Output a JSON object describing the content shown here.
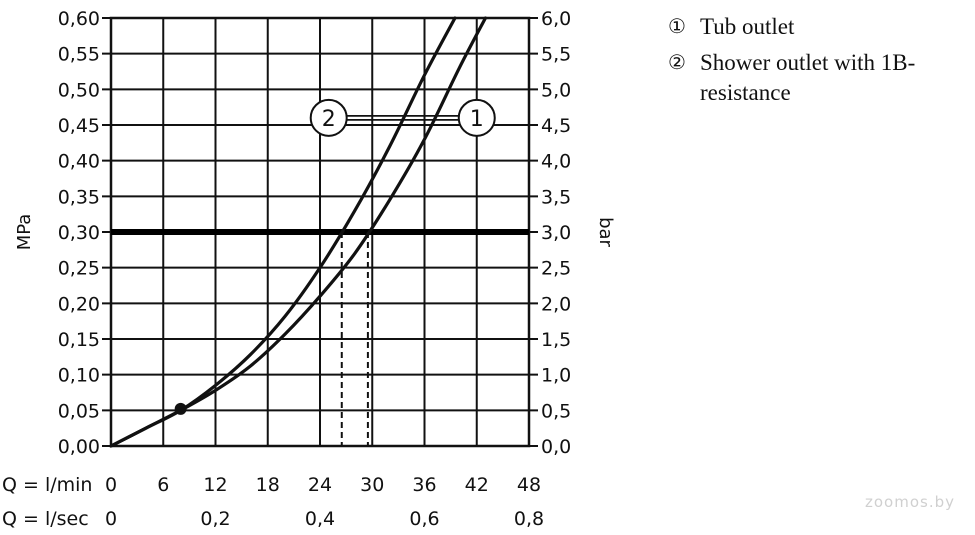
{
  "chart_data": {
    "type": "line",
    "y_left_label": "MPa",
    "y_right_label": "bar",
    "x_label_lmin": "Q = l/min",
    "x_label_lsec": "Q = l/sec",
    "xlim": [
      0,
      48
    ],
    "ylim": [
      0,
      0.6
    ],
    "x_ticks_lmin": [
      "0",
      "6",
      "12",
      "18",
      "24",
      "30",
      "36",
      "42",
      "48"
    ],
    "x_ticks_lsec": [
      {
        "x": 0,
        "label": "0"
      },
      {
        "x": 12,
        "label": "0,2"
      },
      {
        "x": 24,
        "label": "0,4"
      },
      {
        "x": 36,
        "label": "0,6"
      },
      {
        "x": 48,
        "label": "0,8"
      }
    ],
    "y_ticks_left": [
      "0,00",
      "0,05",
      "0,10",
      "0,15",
      "0,20",
      "0,25",
      "0,30",
      "0,35",
      "0,40",
      "0,45",
      "0,50",
      "0,55",
      "0,60"
    ],
    "y_ticks_right": [
      "0,0",
      "0,5",
      "1,0",
      "1,5",
      "2,0",
      "2,5",
      "3,0",
      "3,5",
      "4,0",
      "4,5",
      "5,0",
      "5,5",
      "6,0"
    ],
    "reference_line_y": 0.3,
    "reference_drops_x": [
      26.5,
      29.5
    ],
    "marker_point": {
      "x": 8,
      "y": 0.052
    },
    "series": [
      {
        "name": "Tub outlet",
        "label": "1",
        "x": [
          0,
          4,
          8,
          12,
          16,
          20,
          24,
          28,
          32,
          36,
          40,
          43
        ],
        "y": [
          0,
          0.025,
          0.05,
          0.078,
          0.112,
          0.157,
          0.21,
          0.27,
          0.345,
          0.43,
          0.53,
          0.6
        ]
      },
      {
        "name": "Shower outlet with 1B-resistance",
        "label": "2",
        "x": [
          0,
          4,
          8,
          12,
          16,
          20,
          24,
          28,
          32,
          36,
          39.5
        ],
        "y": [
          0,
          0.025,
          0.05,
          0.085,
          0.128,
          0.182,
          0.25,
          0.33,
          0.42,
          0.52,
          0.6
        ]
      }
    ],
    "curve_label_positions": [
      {
        "series": "1",
        "x": 42,
        "y": 0.46
      },
      {
        "series": "2",
        "x": 25,
        "y": 0.46
      }
    ]
  },
  "legend": {
    "item1_mark": "①",
    "item1_text": "Tub outlet",
    "item2_mark": "②",
    "item2_text": "Shower outlet with 1B-resistance"
  },
  "watermark": "zoomos.by"
}
